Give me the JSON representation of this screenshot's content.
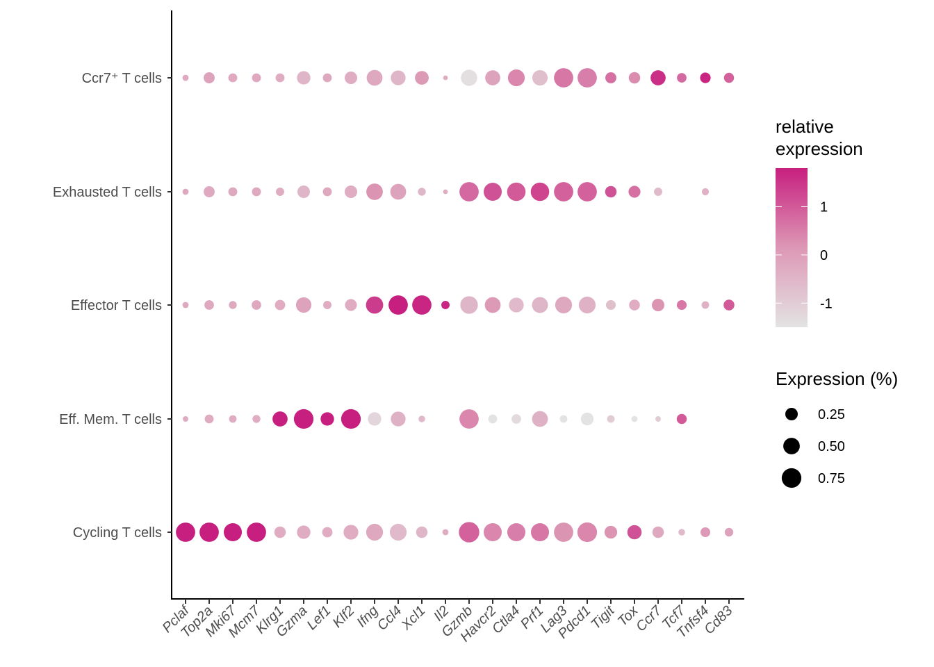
{
  "chart_data": {
    "type": "dotplot",
    "title": "",
    "xlabel": "",
    "ylabel": "",
    "genes": [
      "Pclaf",
      "Top2a",
      "Mki67",
      "Mcm7",
      "Klrg1",
      "Gzma",
      "Lef1",
      "Klf2",
      "Ifng",
      "Ccl4",
      "Xcl1",
      "Il2",
      "Gzmb",
      "Havcr2",
      "Ctla4",
      "Prf1",
      "Lag3",
      "Pdcd1",
      "Tigit",
      "Tox",
      "Ccr7",
      "Tcf7",
      "Tnfsf4",
      "Cd83"
    ],
    "cell_types": [
      "Ccr7⁺ T cells",
      "Exhausted T cells",
      "Effector T cells",
      "Eff. Mem. T cells",
      "Cycling T cells"
    ],
    "series": [
      {
        "name": "Ccr7⁺ T cells",
        "pct": [
          0.03,
          0.18,
          0.1,
          0.1,
          0.1,
          0.3,
          0.1,
          0.25,
          0.45,
          0.38,
          0.32,
          0.01,
          0.48,
          0.4,
          0.52,
          0.42,
          0.72,
          0.72,
          0.18,
          0.2,
          0.4,
          0.12,
          0.16,
          0.14
        ],
        "rel": [
          -0.2,
          -0.1,
          -0.2,
          -0.2,
          -0.3,
          -0.5,
          -0.2,
          -0.3,
          -0.2,
          -0.5,
          0.1,
          -0.3,
          -1.4,
          -0.1,
          0.4,
          -0.7,
          0.6,
          0.5,
          0.7,
          0.3,
          1.6,
          0.8,
          1.7,
          0.9
        ]
      },
      {
        "name": "Exhausted T cells",
        "pct": [
          0.03,
          0.18,
          0.1,
          0.1,
          0.08,
          0.25,
          0.1,
          0.25,
          0.5,
          0.45,
          0.07,
          0.01,
          0.72,
          0.62,
          0.65,
          0.65,
          0.72,
          0.72,
          0.2,
          0.22,
          0.08,
          null,
          0.05,
          null
        ],
        "rel": [
          -0.2,
          -0.2,
          -0.2,
          -0.2,
          -0.3,
          -0.5,
          -0.2,
          -0.3,
          0.2,
          -0.1,
          -0.5,
          -0.3,
          0.8,
          1.1,
          1.0,
          1.3,
          0.9,
          0.9,
          1.1,
          0.7,
          -0.6,
          null,
          -0.4,
          null
        ]
      },
      {
        "name": "Effector T cells",
        "pct": [
          0.03,
          0.12,
          0.07,
          0.12,
          0.15,
          0.42,
          0.08,
          0.22,
          0.55,
          0.72,
          0.72,
          0.08,
          0.58,
          0.45,
          0.38,
          0.46,
          0.52,
          0.52,
          0.13,
          0.17,
          0.25,
          0.13,
          0.06,
          0.17
        ],
        "rel": [
          -0.2,
          -0.2,
          -0.2,
          -0.2,
          -0.3,
          -0.1,
          -0.3,
          -0.3,
          1.4,
          1.8,
          1.7,
          1.7,
          -0.5,
          0.1,
          -0.6,
          -0.5,
          -0.2,
          -0.4,
          -0.7,
          -0.3,
          0.2,
          0.6,
          -0.4,
          1.0
        ]
      },
      {
        "name": "Eff. Mem. T cells",
        "pct": [
          0.02,
          0.1,
          0.06,
          0.07,
          0.4,
          0.75,
          0.3,
          0.75,
          0.3,
          0.38,
          0.04,
          null,
          0.72,
          0.1,
          0.12,
          0.45,
          0.06,
          0.26,
          0.06,
          0.03,
          0.02,
          0.14,
          null,
          null
        ],
        "rel": [
          -0.3,
          -0.3,
          -0.3,
          -0.3,
          1.8,
          1.8,
          1.8,
          1.8,
          -1.2,
          -0.4,
          -0.6,
          null,
          0.4,
          -1.5,
          -1.3,
          -0.4,
          -1.5,
          -1.5,
          -1.0,
          -1.5,
          -1.0,
          1.0,
          null,
          null
        ]
      },
      {
        "name": "Cycling T cells",
        "pct": [
          0.72,
          0.72,
          0.62,
          0.72,
          0.2,
          0.3,
          0.15,
          0.38,
          0.52,
          0.52,
          0.2,
          0.03,
          0.82,
          0.62,
          0.62,
          0.62,
          0.72,
          0.75,
          0.26,
          0.35,
          0.2,
          0.04,
          0.13,
          0.09
        ],
        "rel": [
          1.8,
          1.8,
          1.8,
          1.8,
          -0.3,
          -0.3,
          -0.3,
          -0.3,
          -0.2,
          -0.6,
          -0.5,
          -0.3,
          0.9,
          0.4,
          0.5,
          0.6,
          0.2,
          0.4,
          0.2,
          1.1,
          -0.2,
          -0.6,
          0.1,
          -0.1
        ]
      }
    ],
    "color_legend": {
      "title_line1": "relative",
      "title_line2": "expression",
      "ticks": [
        1,
        0,
        -1
      ],
      "tick_labels": [
        "1",
        "0",
        "-1"
      ],
      "range": [
        -1.5,
        1.8
      ],
      "low_color": "#e3e3e3",
      "high_color": "#c71f7f"
    },
    "size_legend": {
      "title": "Expression (%)",
      "values": [
        0.25,
        0.5,
        0.75
      ],
      "labels": [
        "0.25",
        "0.50",
        "0.75"
      ],
      "color": "#000000"
    },
    "legend_position": "right",
    "grid": false
  }
}
